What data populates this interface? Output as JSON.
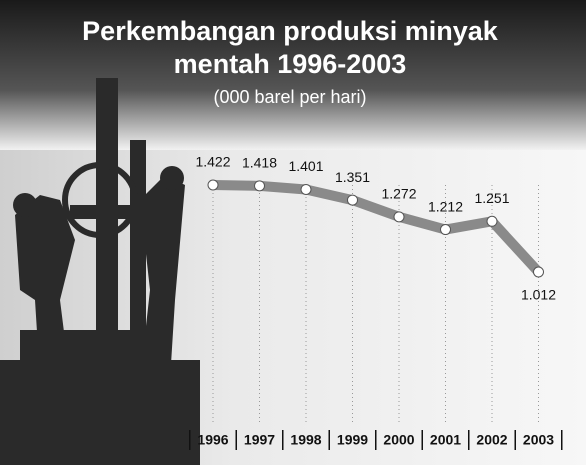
{
  "chart_data": {
    "type": "line",
    "title": [
      "Perkembangan produksi minyak",
      "mentah 1996-2003"
    ],
    "subtitle": "(000 barel per hari)",
    "categories": [
      "1996",
      "1997",
      "1998",
      "1999",
      "2000",
      "2001",
      "2002",
      "2003"
    ],
    "series": [
      {
        "color": "#8a8a8a",
        "values": [
          1422,
          1418,
          1401,
          1351,
          1272,
          1212,
          1251,
          1012
        ],
        "value_labels": [
          "1.422",
          "1.418",
          "1.401",
          "1.351",
          "1.272",
          "1.212",
          "1.251",
          "1.012"
        ]
      }
    ],
    "grid": true
  }
}
